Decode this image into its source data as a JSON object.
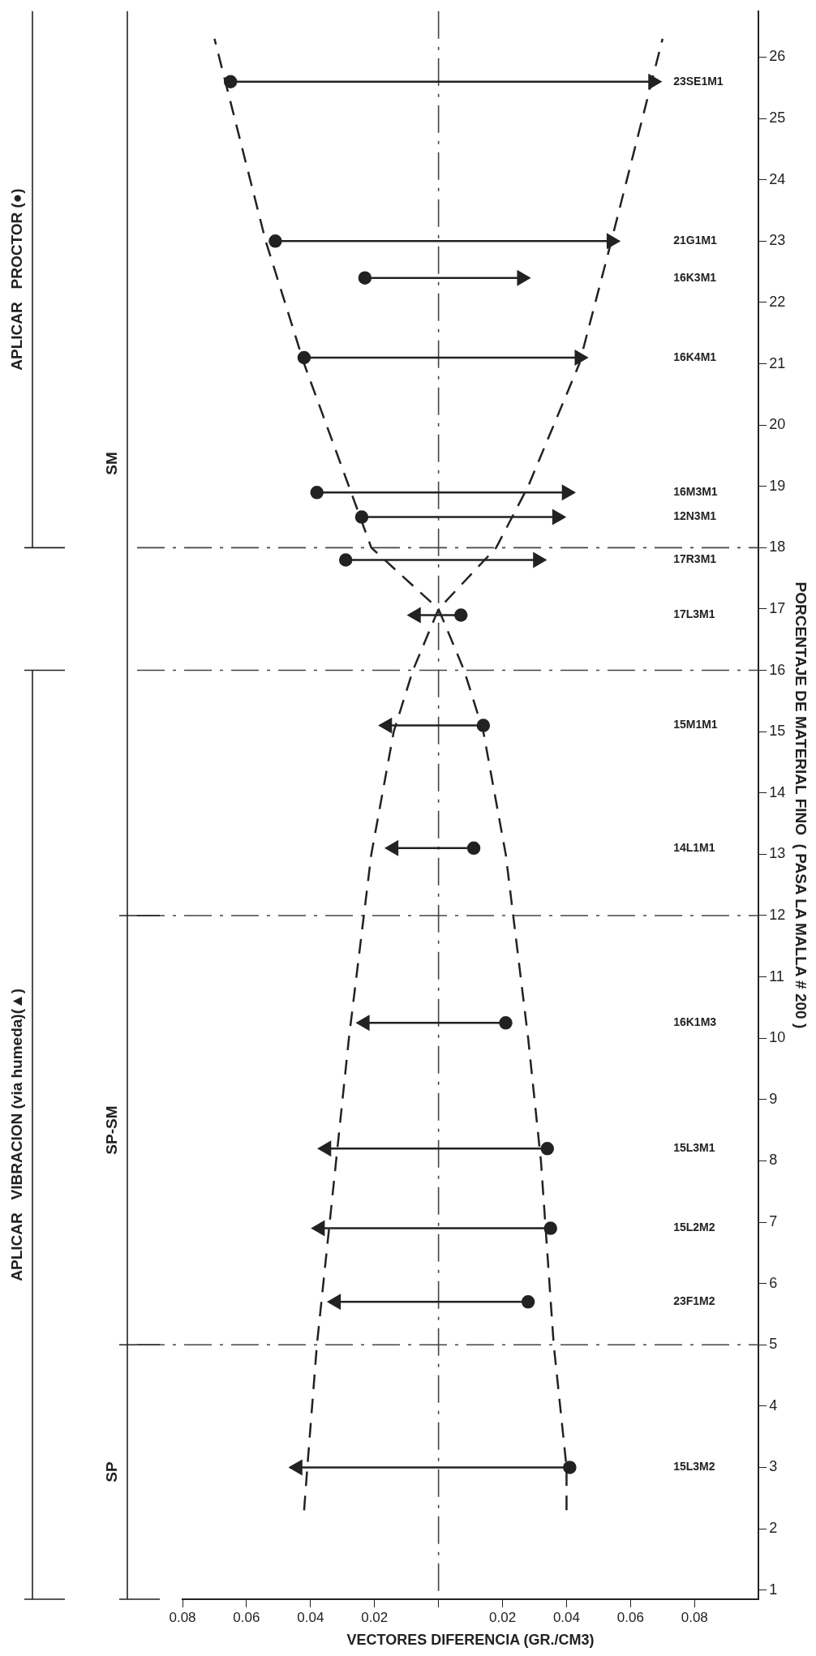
{
  "chart_data": {
    "type": "scatter",
    "xlabel": "VECTORES DIFERENCIA (GR./CM3)",
    "ylabel": "PORCENTAJE DE MATERIAL FINO  ( PASA LA MALLA # 200 )",
    "xlim": [
      -0.08,
      0.1
    ],
    "ylim": [
      0.85,
      26.75
    ],
    "xticks": [
      {
        "value": -0.08,
        "label": "0.08"
      },
      {
        "value": -0.06,
        "label": "0.06"
      },
      {
        "value": -0.04,
        "label": "0.04"
      },
      {
        "value": -0.02,
        "label": "0.02"
      },
      {
        "value": 0,
        "label": null
      },
      {
        "value": 0.02,
        "label": "0.02"
      },
      {
        "value": 0.04,
        "label": "0.04"
      },
      {
        "value": 0.06,
        "label": "0.06"
      },
      {
        "value": 0.08,
        "label": "0.08"
      }
    ],
    "yticks": [
      1,
      2,
      3,
      4,
      5,
      6,
      7,
      8,
      9,
      10,
      11,
      12,
      13,
      14,
      15,
      16,
      17,
      18,
      19,
      20,
      21,
      22,
      23,
      24,
      25,
      26
    ],
    "grid": false,
    "legend": false,
    "series": [
      {
        "marker": "circle",
        "color": "#222222",
        "x": [
          -0.065,
          -0.051,
          -0.023,
          -0.042,
          -0.038,
          -0.024,
          -0.029,
          0.007,
          0.014,
          0.011,
          0.021,
          0.034,
          0.035,
          0.028,
          0.041
        ],
        "values": [
          25.6,
          23.0,
          22.4,
          21.1,
          18.9,
          18.5,
          17.8,
          16.9,
          15.1,
          13.1,
          10.25,
          8.2,
          6.9,
          5.7,
          3.0
        ]
      },
      {
        "marker": "triangle",
        "color": "#222222",
        "x": [
          0.067,
          0.054,
          0.026,
          0.044,
          0.04,
          0.037,
          0.031,
          -0.007,
          -0.016,
          -0.014,
          -0.023,
          -0.035,
          -0.037,
          -0.032,
          -0.044
        ],
        "values": [
          25.6,
          23.0,
          22.4,
          21.1,
          18.9,
          18.5,
          17.8,
          16.9,
          15.1,
          13.1,
          10.25,
          8.2,
          6.9,
          5.7,
          3.0
        ]
      },
      {
        "type": "line",
        "marker": "none",
        "line_style": "solid",
        "color": "#222222",
        "x": [
          -0.065,
          0.067
        ],
        "values": [
          25.6,
          25.6
        ]
      },
      {
        "type": "line",
        "marker": "none",
        "line_style": "solid",
        "color": "#222222",
        "x": [
          -0.051,
          0.054
        ],
        "values": [
          23.0,
          23.0
        ]
      },
      {
        "type": "line",
        "marker": "none",
        "line_style": "solid",
        "color": "#222222",
        "x": [
          -0.023,
          0.026
        ],
        "values": [
          22.4,
          22.4
        ]
      },
      {
        "type": "line",
        "marker": "none",
        "line_style": "solid",
        "color": "#222222",
        "x": [
          -0.042,
          0.044
        ],
        "values": [
          21.1,
          21.1
        ]
      },
      {
        "type": "line",
        "marker": "none",
        "line_style": "solid",
        "color": "#222222",
        "x": [
          -0.038,
          0.04
        ],
        "values": [
          18.9,
          18.9
        ]
      },
      {
        "type": "line",
        "marker": "none",
        "line_style": "solid",
        "color": "#222222",
        "x": [
          -0.024,
          0.037
        ],
        "values": [
          18.5,
          18.5
        ]
      },
      {
        "type": "line",
        "marker": "none",
        "line_style": "solid",
        "color": "#222222",
        "x": [
          -0.029,
          0.031
        ],
        "values": [
          17.8,
          17.8
        ]
      },
      {
        "type": "line",
        "marker": "none",
        "line_style": "solid",
        "color": "#222222",
        "x": [
          0.007,
          -0.007
        ],
        "values": [
          16.9,
          16.9
        ]
      },
      {
        "type": "line",
        "marker": "none",
        "line_style": "solid",
        "color": "#222222",
        "x": [
          0.014,
          -0.016
        ],
        "values": [
          15.1,
          15.1
        ]
      },
      {
        "type": "line",
        "marker": "none",
        "line_style": "solid",
        "color": "#222222",
        "x": [
          0.011,
          -0.014
        ],
        "values": [
          13.1,
          13.1
        ]
      },
      {
        "type": "line",
        "marker": "none",
        "line_style": "solid",
        "color": "#222222",
        "x": [
          0.021,
          -0.023
        ],
        "values": [
          10.25,
          10.25
        ]
      },
      {
        "type": "line",
        "marker": "none",
        "line_style": "solid",
        "color": "#222222",
        "x": [
          0.034,
          -0.035
        ],
        "values": [
          8.2,
          8.2
        ]
      },
      {
        "type": "line",
        "marker": "none",
        "line_style": "solid",
        "color": "#222222",
        "x": [
          0.035,
          -0.037
        ],
        "values": [
          6.9,
          6.9
        ]
      },
      {
        "type": "line",
        "marker": "none",
        "line_style": "solid",
        "color": "#222222",
        "x": [
          0.028,
          -0.032
        ],
        "values": [
          5.7,
          5.7
        ]
      },
      {
        "type": "line",
        "marker": "none",
        "line_style": "solid",
        "color": "#222222",
        "x": [
          0.041,
          -0.044
        ],
        "values": [
          3.0,
          3.0
        ]
      },
      {
        "type": "line",
        "marker": "none",
        "line_style": "dashed",
        "color": "#222222",
        "x": [
          -0.042,
          -0.041,
          -0.038,
          -0.032,
          -0.028,
          -0.021,
          -0.014,
          -0.008,
          0,
          0.018,
          0.028,
          0.044,
          0.054,
          0.07
        ],
        "values": [
          2.3,
          3,
          5,
          8,
          10,
          13,
          15,
          16,
          17,
          18,
          19,
          21,
          23,
          26.3
        ]
      },
      {
        "type": "line",
        "marker": "none",
        "line_style": "dashed",
        "color": "#222222",
        "x": [
          0.04,
          0.04,
          0.036,
          0.032,
          0.028,
          0.021,
          0.014,
          0.008,
          0,
          -0.021,
          -0.028,
          -0.042,
          -0.054,
          -0.07
        ],
        "values": [
          2.3,
          3,
          5,
          8,
          10,
          13,
          15,
          16,
          17,
          18,
          19,
          21,
          23,
          26.3
        ]
      }
    ],
    "ref_lines": [
      {
        "axis": "x",
        "value": 0,
        "line_style": "dashed"
      },
      {
        "axis": "y",
        "value": 5,
        "line_style": "dashed"
      },
      {
        "axis": "y",
        "value": 12,
        "line_style": "dashed"
      },
      {
        "axis": "y",
        "value": 16,
        "line_style": "dashed"
      },
      {
        "axis": "y",
        "value": 18,
        "line_style": "dashed"
      }
    ],
    "annotations": [
      "23SE1M1",
      "21G1M1",
      "16K3M1",
      "16K4M1",
      "16M3M1",
      "12N3M1",
      "17R3M1",
      "17L3M1",
      "15M1M1",
      "14L1M1",
      "16K1M3",
      "15L3M1",
      "15L2M2",
      "23F1M2",
      "15L3M2",
      "SP",
      "SP-SM",
      "SM",
      "APLICAR   VIBRACION (via humeda)(▲)",
      "APLICAR   PROCTOR (●)"
    ]
  }
}
